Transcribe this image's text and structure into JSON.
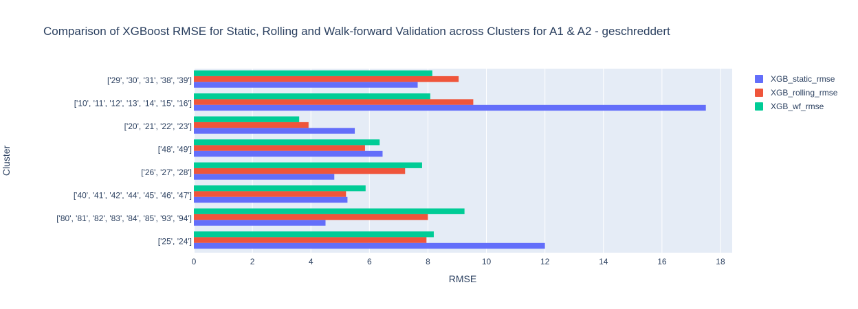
{
  "chart_data": {
    "type": "bar",
    "orientation": "horizontal",
    "title": "Comparison of XGBoost RMSE for Static, Rolling and Walk-forward Validation across Clusters for A1 & A2 -  geschreddert",
    "xlabel": "RMSE",
    "ylabel": "Cluster",
    "xlim": [
      0,
      18.4
    ],
    "xticks": [
      0,
      2,
      4,
      6,
      8,
      10,
      12,
      14,
      16,
      18
    ],
    "grid": true,
    "legend_position": "top-right",
    "categories": [
      "['25', '24']",
      "['80', '81', '82', '83', '84', '85', '93', '94']",
      "['40', '41', '42', '44', '45', '46', '47']",
      "['26', '27', '28']",
      "['48', '49']",
      "['20', '21', '22', '23']",
      "['10', '11', '12', '13', '14', '15', '16']",
      "['29', '30', '31', '38', '39']"
    ],
    "series": [
      {
        "name": "XGB_static_rmse",
        "color": "#636efa",
        "values": [
          12.0,
          4.5,
          5.25,
          4.8,
          6.45,
          5.5,
          17.5,
          7.65
        ]
      },
      {
        "name": "XGB_rolling_rmse",
        "color": "#ef553b",
        "values": [
          7.95,
          8.0,
          5.2,
          7.22,
          5.85,
          3.92,
          9.55,
          9.05
        ]
      },
      {
        "name": "XGB_wf_rmse",
        "color": "#00cc96",
        "values": [
          8.2,
          9.25,
          5.87,
          7.8,
          6.35,
          3.6,
          8.08,
          8.15
        ]
      }
    ]
  }
}
